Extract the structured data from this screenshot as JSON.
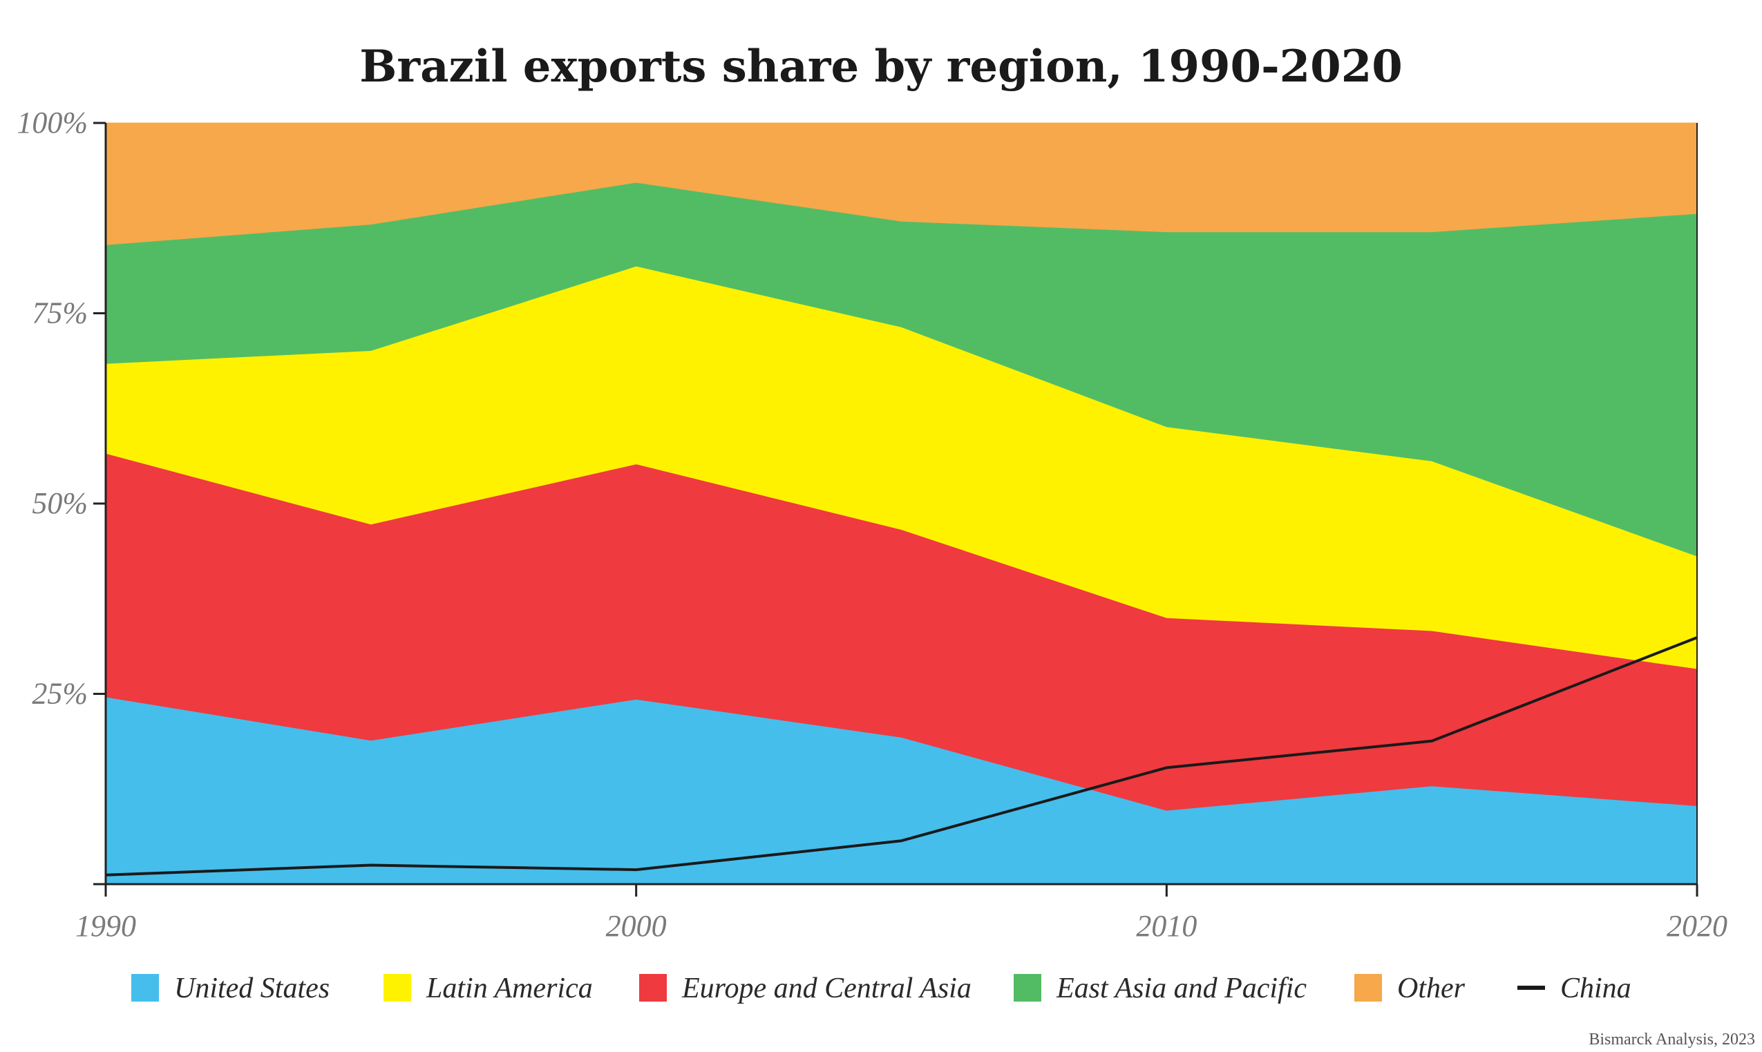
{
  "chart_data": {
    "type": "area",
    "stacked": true,
    "title": "Brazil exports share by region, 1990-2020",
    "x": [
      1990,
      1995,
      2000,
      2005,
      2010,
      2015,
      2020
    ],
    "x_ticks": [
      "1990",
      "2000",
      "2010",
      "2020"
    ],
    "y_ticks": [
      "25%",
      "50%",
      "75%",
      "100%"
    ],
    "y_tick_values": [
      25,
      50,
      75,
      100
    ],
    "xlim": [
      1990,
      2020
    ],
    "ylim": [
      0,
      100
    ],
    "grid": false,
    "legend_position": "bottom",
    "series": [
      {
        "name": "United States",
        "color": "#45BEEC",
        "values": [
          24.6,
          18.9,
          24.3,
          19.3,
          9.7,
          12.9,
          10.3
        ]
      },
      {
        "name": "Europe and Central Asia",
        "color": "#EF3A40",
        "values": [
          32.0,
          28.4,
          30.9,
          27.3,
          25.3,
          20.4,
          18.0
        ]
      },
      {
        "name": "Latin America",
        "color": "#FEF200",
        "values": [
          11.8,
          22.8,
          26.0,
          26.6,
          25.1,
          22.3,
          14.8
        ]
      },
      {
        "name": "East Asia and Pacific",
        "color": "#52BC65",
        "values": [
          15.6,
          16.6,
          11.0,
          13.9,
          25.6,
          30.1,
          45.0
        ]
      },
      {
        "name": "Other",
        "color": "#F6A84A",
        "values": [
          16.0,
          13.3,
          7.8,
          12.9,
          14.3,
          14.3,
          11.9
        ]
      }
    ],
    "line_series": [
      {
        "name": "China",
        "color": "#1a1a1a",
        "values": [
          1.2,
          2.5,
          1.9,
          5.7,
          15.3,
          18.8,
          32.4
        ]
      }
    ]
  },
  "legend": [
    {
      "name": "United States",
      "kind": "swatch",
      "color": "#45BEEC"
    },
    {
      "name": "Latin America",
      "kind": "swatch",
      "color": "#FEF200"
    },
    {
      "name": "Europe and Central Asia",
      "kind": "swatch",
      "color": "#EF3A40"
    },
    {
      "name": "East Asia and Pacific",
      "kind": "swatch",
      "color": "#52BC65"
    },
    {
      "name": "Other",
      "kind": "swatch",
      "color": "#F6A84A"
    },
    {
      "name": "China",
      "kind": "line",
      "color": "#1a1a1a"
    }
  ],
  "source": "Bismarck Analysis, 2023"
}
